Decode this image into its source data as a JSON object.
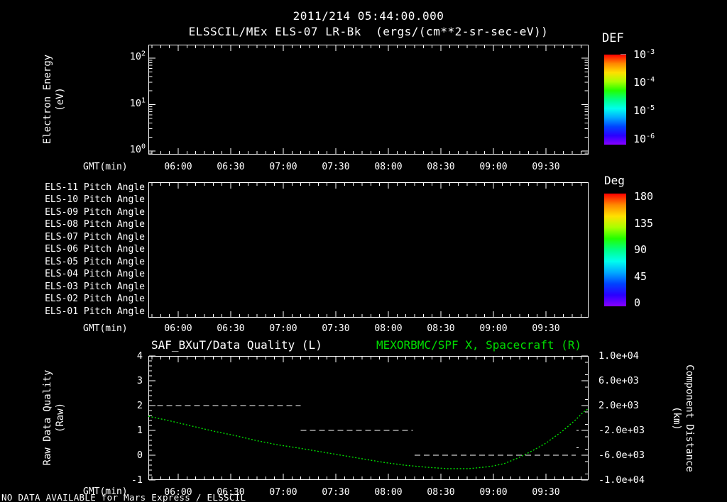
{
  "header": {
    "datetime": "2011/214 05:44:00.000",
    "title": "ELSSCIL/MEx ELS-07 LR-Bk  (ergs/(cm**2-sr-sec-eV))"
  },
  "time_axis": {
    "label": "GMT(min)",
    "start": "05:44",
    "end": "09:55",
    "ticks": [
      "06:00",
      "06:30",
      "07:00",
      "07:30",
      "08:00",
      "08:30",
      "09:00",
      "09:30"
    ]
  },
  "panel1": {
    "ylabel_line1": "Electron Energy",
    "ylabel_line2": "(eV)",
    "yticks": [
      "10^2",
      "10^1",
      "10^0"
    ],
    "colorbar": {
      "title": "DEF",
      "ticks": [
        "10^-3",
        "10^-4",
        "10^-5",
        "10^-6"
      ]
    }
  },
  "panel2": {
    "row_labels": [
      "ELS-11 Pitch Angle",
      "ELS-10 Pitch Angle",
      "ELS-09 Pitch Angle",
      "ELS-08 Pitch Angle",
      "ELS-07 Pitch Angle",
      "ELS-06 Pitch Angle",
      "ELS-05 Pitch Angle",
      "ELS-04 Pitch Angle",
      "ELS-03 Pitch Angle",
      "ELS-02 Pitch Angle",
      "ELS-01 Pitch Angle"
    ],
    "colorbar": {
      "title": "Deg",
      "ticks": [
        "180",
        "135",
        "90",
        "45",
        "0"
      ]
    }
  },
  "panel3": {
    "title_left": "SAF_BXuT/Data Quality (L)",
    "title_right": "MEXORBMC/SPF X, Spacecraft (R)",
    "ylabel_left_line1": "Raw Data Quality",
    "ylabel_left_line2": "(Raw)",
    "ylabel_right_line1": "Component Distance",
    "ylabel_right_line2": "(km)",
    "yticks_left": [
      "4",
      "3",
      "2",
      "1",
      "0",
      "-1"
    ],
    "yticks_right": [
      "1.0e+04",
      "6.0e+03",
      "2.0e+03",
      "-2.0e+03",
      "-6.0e+03",
      "-1.0e+04"
    ]
  },
  "footer": {
    "no_data": "NO DATA AVAILABLE for Mars Express / ELSSCIL"
  },
  "colors": {
    "background": "#000000",
    "foreground": "#ffffff",
    "series_green": "#00dd00",
    "rainbow": [
      "#ff0000",
      "#ff8800",
      "#ffe000",
      "#aaff00",
      "#22ff00",
      "#00ff88",
      "#00ffee",
      "#00aaff",
      "#0044ff",
      "#2a00ff",
      "#8800ff"
    ]
  },
  "chart_data": [
    {
      "type": "heatmap",
      "title": "ELSSCIL/MEx ELS-07 LR-Bk (ergs/(cm**2-sr-sec-eV))",
      "xlabel": "GMT(min)",
      "ylabel": "Electron Energy (eV)",
      "x_range": [
        "05:44",
        "09:55"
      ],
      "x_ticks": [
        "06:00",
        "06:30",
        "07:00",
        "07:30",
        "08:00",
        "08:30",
        "09:00",
        "09:30"
      ],
      "y_scale": "log",
      "y_tick_values": [
        1,
        10,
        100
      ],
      "colorbar": {
        "label": "DEF",
        "scale": "log",
        "tick_values": [
          0.001,
          0.0001,
          1e-05,
          1e-06
        ]
      },
      "values": [],
      "note": "empty panel - no data available"
    },
    {
      "type": "heatmap",
      "rows": [
        "ELS-11 Pitch Angle",
        "ELS-10 Pitch Angle",
        "ELS-09 Pitch Angle",
        "ELS-08 Pitch Angle",
        "ELS-07 Pitch Angle",
        "ELS-06 Pitch Angle",
        "ELS-05 Pitch Angle",
        "ELS-04 Pitch Angle",
        "ELS-03 Pitch Angle",
        "ELS-02 Pitch Angle",
        "ELS-01 Pitch Angle"
      ],
      "xlabel": "GMT(min)",
      "x_range": [
        "05:44",
        "09:55"
      ],
      "x_ticks": [
        "06:00",
        "06:30",
        "07:00",
        "07:30",
        "08:00",
        "08:30",
        "09:00",
        "09:30"
      ],
      "colorbar": {
        "label": "Deg",
        "tick_values": [
          180,
          135,
          90,
          45,
          0
        ]
      },
      "values": [],
      "note": "empty panel - no data available"
    },
    {
      "type": "line",
      "xlabel": "GMT(min)",
      "x_range": [
        "05:44",
        "09:55"
      ],
      "x_ticks": [
        "06:00",
        "06:30",
        "07:00",
        "07:30",
        "08:00",
        "08:30",
        "09:00",
        "09:30"
      ],
      "left_axis": {
        "label": "Raw Data Quality (Raw)",
        "ylim": [
          -1,
          4
        ],
        "tick_values": [
          4,
          3,
          2,
          1,
          0,
          -1
        ]
      },
      "right_axis": {
        "label": "Component Distance (km)",
        "ylim": [
          -10000,
          10000
        ],
        "tick_values": [
          10000,
          6000,
          2000,
          -2000,
          -6000,
          -10000
        ]
      },
      "series": [
        {
          "name": "SAF_BXuT/Data Quality (L)",
          "axis": "left",
          "style": "dashed",
          "color": "#ffffff",
          "segments": [
            {
              "start": "05:48",
              "end": "07:10",
              "value": 2
            },
            {
              "start": "07:10",
              "end": "08:14",
              "value": 1
            },
            {
              "start": "08:15",
              "end": "09:47",
              "value": 0
            }
          ],
          "points": [
            {
              "t": "09:48",
              "value": 1.0
            },
            {
              "t": "09:48",
              "value": 0.3
            }
          ]
        },
        {
          "name": "MEXORBMC/SPF X, Spacecraft (R)",
          "axis": "right",
          "style": "dotted",
          "color": "#00dd00",
          "t": [
            "05:43",
            "05:56",
            "06:08",
            "06:20",
            "06:32",
            "06:44",
            "06:56",
            "07:09",
            "07:21",
            "07:33",
            "07:45",
            "07:57",
            "08:09",
            "08:22",
            "08:34",
            "08:46",
            "08:58",
            "09:06",
            "09:14",
            "09:22",
            "09:30",
            "09:39",
            "09:47",
            "09:51",
            "09:54"
          ],
          "km": [
            290,
            -510,
            -1310,
            -2110,
            -2800,
            -3600,
            -4290,
            -4860,
            -5430,
            -6000,
            -6570,
            -7140,
            -7600,
            -7940,
            -8170,
            -8170,
            -7830,
            -7370,
            -6460,
            -5310,
            -4060,
            -2200,
            -300,
            860,
            1460
          ]
        }
      ]
    }
  ]
}
